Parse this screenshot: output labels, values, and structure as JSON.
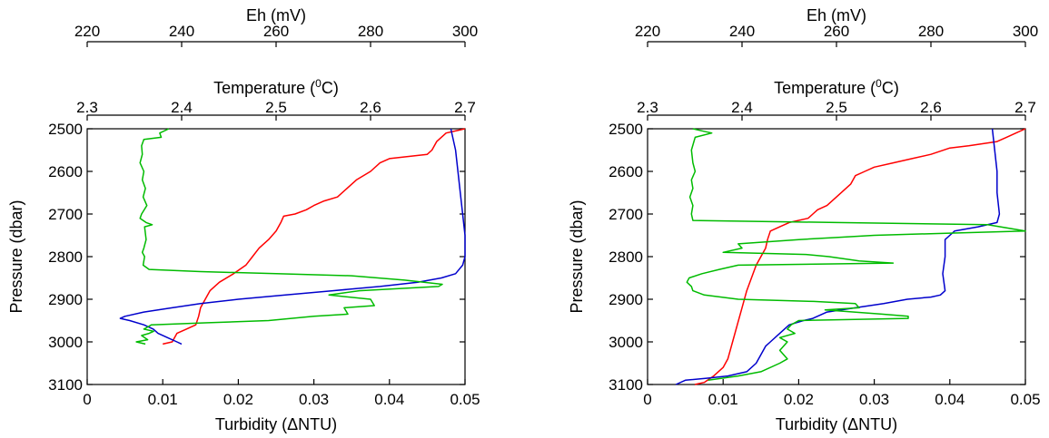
{
  "chart_data": [
    {
      "type": "line",
      "panel": "left",
      "axes": {
        "top_eh": {
          "label": "Eh (mV)",
          "range": [
            220,
            300
          ],
          "ticks": [
            220,
            240,
            260,
            280,
            300
          ]
        },
        "temperature": {
          "label": "Temperature (",
          "label_sup": "0",
          "label_end": "C)",
          "range": [
            2.3,
            2.7
          ],
          "ticks": [
            "2.3",
            "2.4",
            "2.5",
            "2.6",
            "2.7"
          ]
        },
        "pressure": {
          "label": "Pressure (dbar)",
          "range": [
            2500,
            3100
          ],
          "inverted": true,
          "ticks": [
            2500,
            2600,
            2700,
            2800,
            2900,
            3000,
            3100
          ]
        },
        "turbidity": {
          "label": "Turbidity (ΔNTU)",
          "range": [
            0,
            0.05
          ],
          "ticks": [
            "0",
            "0.01",
            "0.02",
            "0.03",
            "0.04",
            "0.05"
          ]
        }
      },
      "series": [
        {
          "color": "#ff0000",
          "x_axis": "temperature",
          "points": [
            [
              2.7,
              2500
            ],
            [
              2.68,
              2510
            ],
            [
              2.67,
              2530
            ],
            [
              2.665,
              2550
            ],
            [
              2.66,
              2560
            ],
            [
              2.62,
              2570
            ],
            [
              2.61,
              2580
            ],
            [
              2.6,
              2600
            ],
            [
              2.585,
              2620
            ],
            [
              2.575,
              2640
            ],
            [
              2.565,
              2660
            ],
            [
              2.55,
              2670
            ],
            [
              2.54,
              2680
            ],
            [
              2.532,
              2690
            ],
            [
              2.52,
              2700
            ],
            [
              2.508,
              2705
            ],
            [
              2.505,
              2720
            ],
            [
              2.5,
              2740
            ],
            [
              2.492,
              2760
            ],
            [
              2.482,
              2780
            ],
            [
              2.475,
              2800
            ],
            [
              2.468,
              2820
            ],
            [
              2.455,
              2840
            ],
            [
              2.44,
              2860
            ],
            [
              2.43,
              2880
            ],
            [
              2.425,
              2900
            ],
            [
              2.42,
              2920
            ],
            [
              2.418,
              2940
            ],
            [
              2.415,
              2960
            ],
            [
              2.405,
              2970
            ],
            [
              2.395,
              2980
            ],
            [
              2.39,
              3000
            ],
            [
              2.38,
              3005
            ]
          ]
        },
        {
          "color": "#0000cc",
          "x_axis": "eh",
          "points": [
            [
              297,
              2500
            ],
            [
              298,
              2550
            ],
            [
              298.5,
              2600
            ],
            [
              299,
              2650
            ],
            [
              299.5,
              2700
            ],
            [
              300,
              2750
            ],
            [
              300,
              2800
            ],
            [
              299.5,
              2820
            ],
            [
              298,
              2840
            ],
            [
              295,
              2850
            ],
            [
              290,
              2860
            ],
            [
              282,
              2870
            ],
            [
              272,
              2880
            ],
            [
              262,
              2890
            ],
            [
              252,
              2900
            ],
            [
              244,
              2910
            ],
            [
              238,
              2920
            ],
            [
              232,
              2930
            ],
            [
              228,
              2940
            ],
            [
              227,
              2945
            ],
            [
              229,
              2950
            ],
            [
              232,
              2960
            ],
            [
              234,
              2970
            ],
            [
              235,
              2980
            ],
            [
              237,
              2990
            ],
            [
              239,
              3000
            ],
            [
              240,
              3005
            ]
          ]
        },
        {
          "color": "#00bb00",
          "x_axis": "turbidity",
          "points": [
            [
              0.0108,
              2500
            ],
            [
              0.0096,
              2510
            ],
            [
              0.0098,
              2520
            ],
            [
              0.0075,
              2525
            ],
            [
              0.0072,
              2540
            ],
            [
              0.0073,
              2560
            ],
            [
              0.007,
              2580
            ],
            [
              0.0075,
              2600
            ],
            [
              0.0073,
              2620
            ],
            [
              0.0077,
              2640
            ],
            [
              0.0074,
              2660
            ],
            [
              0.0079,
              2680
            ],
            [
              0.0072,
              2700
            ],
            [
              0.007,
              2710
            ],
            [
              0.0078,
              2720
            ],
            [
              0.0086,
              2725
            ],
            [
              0.0076,
              2730
            ],
            [
              0.0078,
              2760
            ],
            [
              0.0075,
              2780
            ],
            [
              0.0073,
              2790
            ],
            [
              0.0076,
              2800
            ],
            [
              0.0074,
              2820
            ],
            [
              0.0082,
              2830
            ],
            [
              0.015,
              2835
            ],
            [
              0.025,
              2840
            ],
            [
              0.035,
              2845
            ],
            [
              0.042,
              2855
            ],
            [
              0.047,
              2865
            ],
            [
              0.0465,
              2870
            ],
            [
              0.036,
              2880
            ],
            [
              0.032,
              2890
            ],
            [
              0.0375,
              2900
            ],
            [
              0.038,
              2915
            ],
            [
              0.034,
              2920
            ],
            [
              0.0345,
              2935
            ],
            [
              0.03,
              2940
            ],
            [
              0.024,
              2950
            ],
            [
              0.016,
              2955
            ],
            [
              0.0085,
              2960
            ],
            [
              0.008,
              2965
            ],
            [
              0.0075,
              2970
            ],
            [
              0.0088,
              2975
            ],
            [
              0.0082,
              2980
            ],
            [
              0.0072,
              2985
            ],
            [
              0.008,
              2995
            ],
            [
              0.0065,
              3000
            ],
            [
              0.0077,
              3005
            ]
          ]
        }
      ]
    },
    {
      "type": "line",
      "panel": "right",
      "axes": {
        "top_eh": {
          "label": "Eh (mV)",
          "range": [
            220,
            300
          ],
          "ticks": [
            220,
            240,
            260,
            280,
            300
          ]
        },
        "temperature": {
          "label": "Temperature (",
          "label_sup": "0",
          "label_end": "C)",
          "range": [
            2.3,
            2.7
          ],
          "ticks": [
            "2.3",
            "2.4",
            "2.5",
            "2.6",
            "2.7"
          ]
        },
        "pressure": {
          "label": "Pressure (dbar)",
          "range": [
            2500,
            3100
          ],
          "inverted": true,
          "ticks": [
            2500,
            2600,
            2700,
            2800,
            2900,
            3000,
            3100
          ]
        },
        "turbidity": {
          "label": "Turbidity (ΔNTU)",
          "range": [
            0,
            0.05
          ],
          "ticks": [
            "0",
            "0.01",
            "0.02",
            "0.03",
            "0.04",
            "0.05"
          ]
        }
      },
      "series": [
        {
          "color": "#ff0000",
          "x_axis": "temperature",
          "points": [
            [
              2.7,
              2500
            ],
            [
              2.69,
              2510
            ],
            [
              2.68,
              2520
            ],
            [
              2.67,
              2530
            ],
            [
              2.64,
              2540
            ],
            [
              2.62,
              2545
            ],
            [
              2.6,
              2560
            ],
            [
              2.58,
              2570
            ],
            [
              2.56,
              2580
            ],
            [
              2.54,
              2590
            ],
            [
              2.53,
              2600
            ],
            [
              2.52,
              2610
            ],
            [
              2.515,
              2630
            ],
            [
              2.5,
              2660
            ],
            [
              2.49,
              2680
            ],
            [
              2.48,
              2690
            ],
            [
              2.475,
              2700
            ],
            [
              2.47,
              2710
            ],
            [
              2.45,
              2720
            ],
            [
              2.44,
              2730
            ],
            [
              2.43,
              2740
            ],
            [
              2.427,
              2760
            ],
            [
              2.425,
              2780
            ],
            [
              2.42,
              2800
            ],
            [
              2.415,
              2820
            ],
            [
              2.41,
              2850
            ],
            [
              2.405,
              2880
            ],
            [
              2.4,
              2920
            ],
            [
              2.395,
              2960
            ],
            [
              2.39,
              3000
            ],
            [
              2.385,
              3040
            ],
            [
              2.38,
              3060
            ],
            [
              2.37,
              3080
            ],
            [
              2.36,
              3095
            ],
            [
              2.35,
              3100
            ]
          ]
        },
        {
          "color": "#0000cc",
          "x_axis": "eh",
          "points": [
            [
              293,
              2500
            ],
            [
              293.5,
              2550
            ],
            [
              294,
              2600
            ],
            [
              294,
              2650
            ],
            [
              294.5,
              2700
            ],
            [
              294,
              2720
            ],
            [
              290,
              2730
            ],
            [
              285,
              2740
            ],
            [
              284,
              2750
            ],
            [
              283,
              2760
            ],
            [
              283,
              2800
            ],
            [
              282.5,
              2840
            ],
            [
              283,
              2880
            ],
            [
              282,
              2890
            ],
            [
              280,
              2895
            ],
            [
              275,
              2900
            ],
            [
              270,
              2910
            ],
            [
              264,
              2920
            ],
            [
              258,
              2930
            ],
            [
              255,
              2945
            ],
            [
              253,
              2950
            ],
            [
              250,
              2960
            ],
            [
              248,
              2980
            ],
            [
              246,
              3000
            ],
            [
              245,
              3010
            ],
            [
              244,
              3030
            ],
            [
              243,
              3050
            ],
            [
              241,
              3070
            ],
            [
              237,
              3080
            ],
            [
              233,
              3085
            ],
            [
              228,
              3090
            ],
            [
              226,
              3100
            ]
          ]
        },
        {
          "color": "#00bb00",
          "x_axis": "turbidity",
          "points": [
            [
              0.006,
              2500
            ],
            [
              0.0072,
              2505
            ],
            [
              0.0085,
              2510
            ],
            [
              0.0063,
              2520
            ],
            [
              0.0058,
              2550
            ],
            [
              0.006,
              2580
            ],
            [
              0.0063,
              2600
            ],
            [
              0.0058,
              2620
            ],
            [
              0.006,
              2640
            ],
            [
              0.0056,
              2660
            ],
            [
              0.006,
              2680
            ],
            [
              0.0058,
              2700
            ],
            [
              0.006,
              2715
            ],
            [
              0.025,
              2720
            ],
            [
              0.045,
              2725
            ],
            [
              0.05,
              2740
            ],
            [
              0.04,
              2745
            ],
            [
              0.03,
              2750
            ],
            [
              0.025,
              2755
            ],
            [
              0.02,
              2760
            ],
            [
              0.012,
              2770
            ],
            [
              0.0125,
              2780
            ],
            [
              0.01,
              2790
            ],
            [
              0.021,
              2795
            ],
            [
              0.024,
              2800
            ],
            [
              0.028,
              2810
            ],
            [
              0.0325,
              2815
            ],
            [
              0.012,
              2820
            ],
            [
              0.0095,
              2830
            ],
            [
              0.0072,
              2840
            ],
            [
              0.0055,
              2850
            ],
            [
              0.0052,
              2860
            ],
            [
              0.0058,
              2870
            ],
            [
              0.006,
              2880
            ],
            [
              0.0075,
              2890
            ],
            [
              0.012,
              2900
            ],
            [
              0.022,
              2905
            ],
            [
              0.0275,
              2910
            ],
            [
              0.028,
              2920
            ],
            [
              0.0235,
              2925
            ],
            [
              0.031,
              2935
            ],
            [
              0.0345,
              2940
            ],
            [
              0.0345,
              2945
            ],
            [
              0.02,
              2950
            ],
            [
              0.019,
              2960
            ],
            [
              0.0185,
              2970
            ],
            [
              0.0195,
              2980
            ],
            [
              0.0175,
              2990
            ],
            [
              0.0185,
              3000
            ],
            [
              0.0175,
              3020
            ],
            [
              0.0185,
              3040
            ],
            [
              0.0175,
              3050
            ],
            [
              0.015,
              3070
            ],
            [
              0.012,
              3080
            ],
            [
              0.008,
              3090
            ]
          ]
        }
      ]
    }
  ]
}
